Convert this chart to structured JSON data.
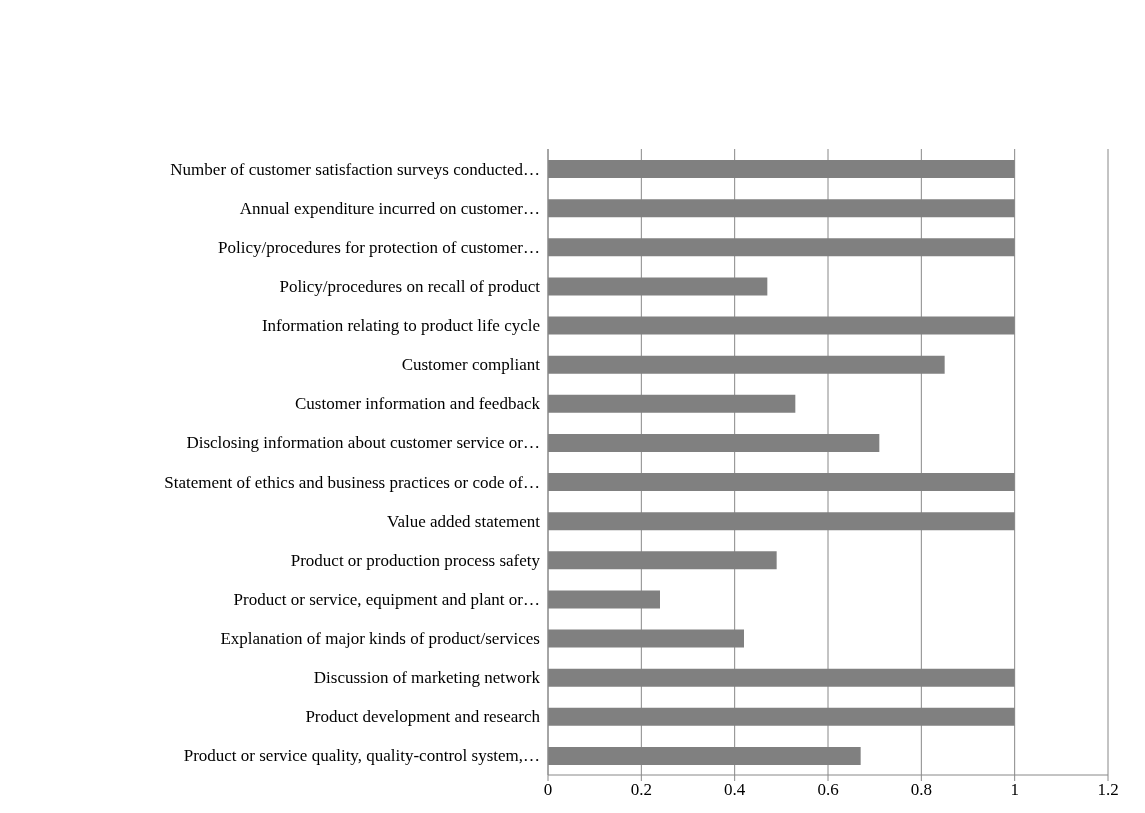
{
  "chart_data": {
    "type": "bar",
    "orientation": "horizontal",
    "categories": [
      "Number of customer satisfaction surveys conducted…",
      "Annual expenditure incurred on customer…",
      "Policy/procedures for protection of customer…",
      "Policy/procedures on recall of product",
      "Information relating to product life cycle",
      "Customer compliant",
      "Customer information and feedback",
      "Disclosing information about customer service or…",
      "Statement of ethics and business practices or code of…",
      "Value added statement",
      "Product or production process safety",
      "Product or service, equipment and plant or…",
      "Explanation of major kinds of product/services",
      "Discussion of marketing network",
      "Product development and research",
      "Product or service quality, quality-control system,…"
    ],
    "values": [
      1,
      1,
      1,
      0.47,
      1,
      0.85,
      0.53,
      0.71,
      1,
      1,
      0.49,
      0.24,
      0.42,
      1,
      1,
      0.67
    ],
    "color": "#808080",
    "xlim": [
      0,
      1.2
    ],
    "xticks": [
      0,
      0.2,
      0.4,
      0.6,
      0.8,
      1,
      1.2
    ],
    "grid": "x"
  }
}
